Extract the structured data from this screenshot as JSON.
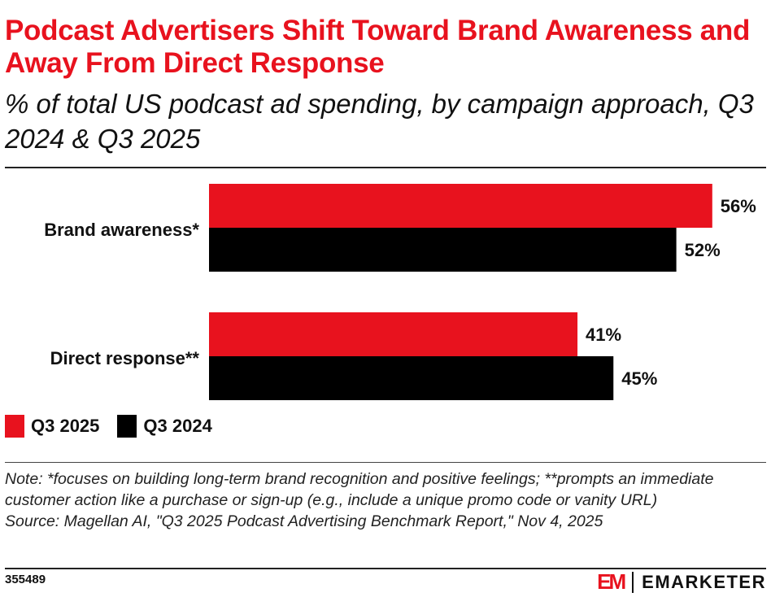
{
  "title": "Podcast Advertisers Shift Toward Brand Awareness and Away From Direct Response",
  "subtitle": "% of total US podcast ad spending, by campaign approach, Q3 2024 & Q3 2025",
  "chart_data": {
    "type": "bar",
    "orientation": "horizontal",
    "categories": [
      "Brand awareness*",
      "Direct response**"
    ],
    "series": [
      {
        "name": "Q3 2025",
        "values": [
          56,
          41
        ],
        "labels": [
          "56%",
          "41%"
        ],
        "color": "#e8121e"
      },
      {
        "name": "Q3 2024",
        "values": [
          52,
          45
        ],
        "labels": [
          "52%",
          "45%"
        ],
        "color": "#000000"
      }
    ],
    "xlim": [
      0,
      60
    ],
    "grid": false,
    "legend_position": "bottom-left"
  },
  "note": "Note: *focuses on building long-term brand recognition and positive feelings; **prompts an immediate customer action like a purchase or sign-up (e.g., include a unique promo code or vanity URL)",
  "source": "Source: Magellan AI, \"Q3 2025 Podcast Advertising Benchmark Report,\" Nov 4, 2025",
  "chart_id": "355489",
  "logo": {
    "mark": "EM",
    "name": "EMARKETER"
  }
}
